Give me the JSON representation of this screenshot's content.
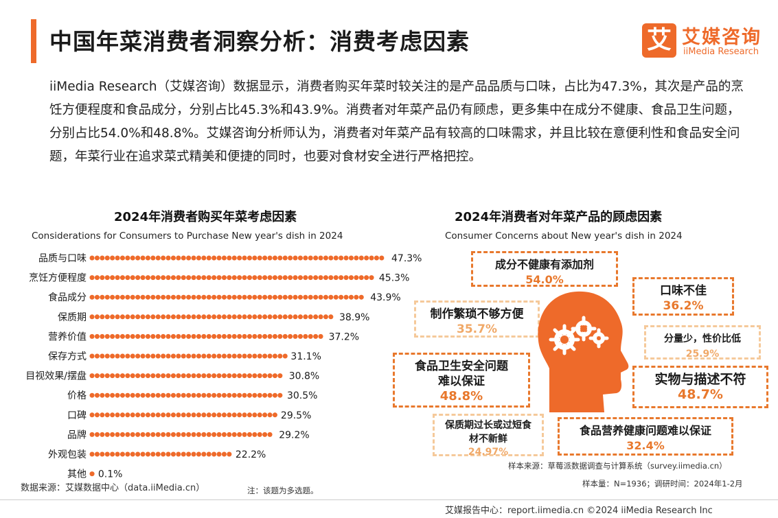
{
  "header": {
    "title": "中国年菜消费者洞察分析：消费考虑因素",
    "logo_mark": "艾",
    "logo_cn": "艾媒咨询",
    "logo_en": "iiMedia Research"
  },
  "intro": "iiMedia Research（艾媒咨询）数据显示，消费者购买年菜时较关注的是产品品质与口味，占比为47.3%，其次是产品的烹饪方便程度和食品成分，分别占比45.3%和43.9%。消费者对年菜产品仍有顾虑，更多集中在成分不健康、食品卫生问题，分别占比54.0%和48.8%。艾媒咨询分析师认为，消费者对年菜产品有较高的口味需求，并且比较在意便利性和食品安全问题，年菜行业在追求菜式精美和便捷的同时，也要对食材安全进行严格把控。",
  "chart_data": [
    {
      "type": "bar",
      "orientation": "horizontal",
      "title": "2024年消费者购买年菜考虑因素",
      "subtitle": "Considerations for Consumers to Purchase New year's dish in 2024",
      "categories": [
        "品质与口味",
        "烹饪方便程度",
        "食品成分",
        "保质期",
        "营养价值",
        "保存方式",
        "目视效果/摆盘",
        "价格",
        "口碑",
        "品牌",
        "外观包装",
        "其他"
      ],
      "values": [
        47.3,
        45.3,
        43.9,
        38.9,
        37.2,
        31.1,
        30.8,
        30.5,
        29.5,
        29.2,
        22.2,
        0.1
      ],
      "value_labels": [
        "47.3%",
        "45.3%",
        "43.9%",
        "38.9%",
        "37.2%",
        "31.1%",
        "30.8%",
        "30.5%",
        "29.5%",
        "29.2%",
        "22.2%",
        "0.1%"
      ],
      "color": "#ee6a2a"
    },
    {
      "type": "table",
      "title": "2024年消费者对年菜产品的顾虑因素",
      "subtitle": "Consumer Concerns about New year's dish in 2024",
      "items": [
        {
          "label": "成分不健康有添加剂",
          "value": "54.0%"
        },
        {
          "label": "口味不佳",
          "value": "36.2%"
        },
        {
          "label": "制作繁琐不够方便",
          "value": "35.7%"
        },
        {
          "label": "分量少，性价比低",
          "value": "25.9%"
        },
        {
          "label": "食品卫生安全问题难以保证",
          "value": "48.8%"
        },
        {
          "label": "实物与描述不符",
          "value": "48.7%"
        },
        {
          "label": "保质期过长或过短食材不新鲜",
          "value": "24.97%"
        },
        {
          "label": "食品营养健康问题难以保证",
          "value": "32.4%"
        }
      ]
    }
  ],
  "notes": {
    "source": "数据来源：艾媒数据中心（data.iiMedia.cn）",
    "multi": "注：该题为多选题。",
    "sample_source": "样本来源：草莓派数据调查与计算系统（survey.iimedia.cn）",
    "sample_size": "样本量：N=1936；调研时间：2024年1-2月"
  },
  "footer": "艾媒报告中心：report.iimedia.cn ©2024 iiMedia Research Inc"
}
